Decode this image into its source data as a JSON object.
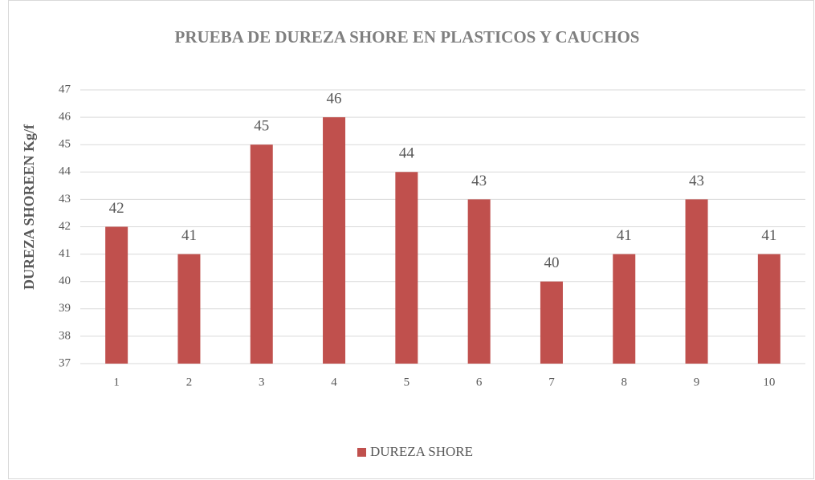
{
  "chart_data": {
    "type": "bar",
    "title": "PRUEBA DE DUREZA SHORE EN PLASTICOS Y CAUCHOS",
    "y_label": "DUREZA SHOREEN Kg/f",
    "categories": [
      "1",
      "2",
      "3",
      "4",
      "5",
      "6",
      "7",
      "8",
      "9",
      "10"
    ],
    "series": [
      {
        "name": "DUREZA SHORE",
        "color": "#c0504d",
        "values": [
          42,
          41,
          45,
          46,
          44,
          43,
          40,
          41,
          43,
          41
        ]
      }
    ],
    "ylim": [
      37,
      47
    ],
    "yticks": [
      37,
      38,
      39,
      40,
      41,
      42,
      43,
      44,
      45,
      46,
      47
    ],
    "grid": true,
    "legend": "bottom"
  }
}
